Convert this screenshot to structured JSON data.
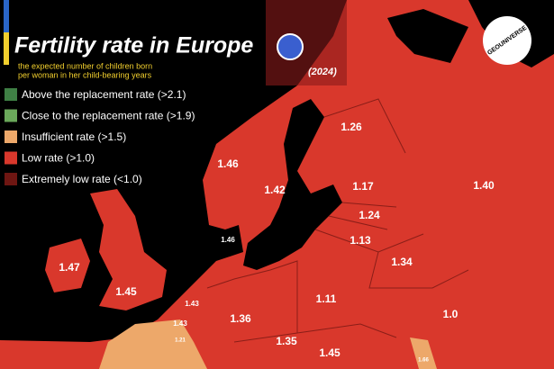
{
  "header": {
    "title": "Fertility rate in Europe",
    "subtitle_lines": [
      "the expected number of children born",
      "per woman in her child-bearing years"
    ],
    "year": "(2024)",
    "logo": "GEOUNIVERSE"
  },
  "legend": [
    {
      "label": "Above the replacement rate",
      "threshold": "(>2.1)",
      "color": "#3f7f45"
    },
    {
      "label": "Close to the replacement rate",
      "threshold": "(>1.9)",
      "color": "#6aa85a"
    },
    {
      "label": "Insufficient rate",
      "threshold": "(>1.5)",
      "color": "#eda86a"
    },
    {
      "label": "Low rate",
      "threshold": "(>1.0)",
      "color": "#d9382c"
    },
    {
      "label": "Extremely low rate",
      "threshold": "(<1.0)",
      "color": "#6e1612"
    }
  ],
  "map_labels": [
    "1.26",
    "1.46",
    "1.42",
    "1.17",
    "1.24",
    "1.13",
    "1.40",
    "1.46",
    "1.47",
    "1.45",
    "1.43",
    "1.43",
    "1.21",
    "1.36",
    "1.11",
    "1.34",
    "1.0",
    "1.35",
    "1.45",
    "1.66"
  ]
}
